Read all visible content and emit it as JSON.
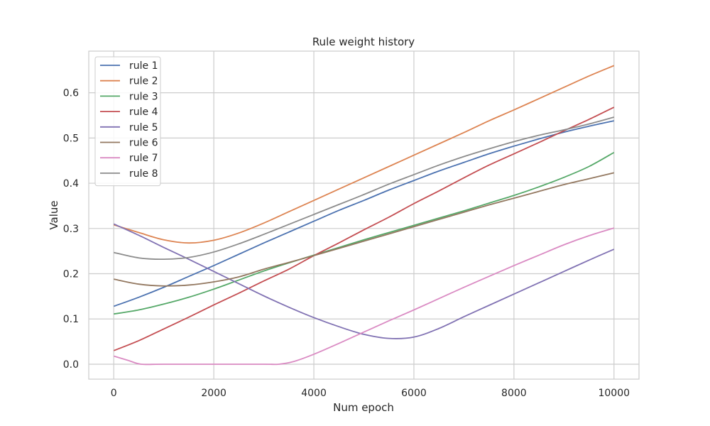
{
  "chart_data": {
    "type": "line",
    "title": "Rule weight history",
    "xlabel": "Num epoch",
    "ylabel": "Value",
    "xlim": [
      -500,
      10500
    ],
    "ylim": [
      -0.033,
      0.692
    ],
    "xticks": [
      0,
      2000,
      4000,
      6000,
      8000,
      10000
    ],
    "yticks": [
      0.0,
      0.1,
      0.2,
      0.3,
      0.4,
      0.5,
      0.6
    ],
    "xtick_labels": [
      "0",
      "2000",
      "4000",
      "6000",
      "8000",
      "10000"
    ],
    "ytick_labels": [
      "0.0",
      "0.1",
      "0.2",
      "0.3",
      "0.4",
      "0.5",
      "0.6"
    ],
    "grid": true,
    "legend_position": "top-left",
    "series": [
      {
        "name": "rule 1",
        "color": "#4c72b0",
        "x": [
          0,
          500,
          1000,
          1500,
          2000,
          2500,
          3000,
          3500,
          4000,
          4500,
          5000,
          5500,
          6000,
          6500,
          7000,
          7500,
          8000,
          8500,
          9000,
          9500,
          10000
        ],
        "y": [
          0.128,
          0.148,
          0.17,
          0.194,
          0.218,
          0.243,
          0.268,
          0.292,
          0.316,
          0.34,
          0.362,
          0.385,
          0.406,
          0.427,
          0.446,
          0.465,
          0.482,
          0.498,
          0.513,
          0.526,
          0.538
        ]
      },
      {
        "name": "rule 2",
        "color": "#dd8452",
        "x": [
          0,
          500,
          1000,
          1500,
          2000,
          2500,
          3000,
          3500,
          4000,
          4500,
          5000,
          5500,
          6000,
          6500,
          7000,
          7500,
          8000,
          8500,
          9000,
          9500,
          10000
        ],
        "y": [
          0.308,
          0.291,
          0.275,
          0.268,
          0.274,
          0.29,
          0.312,
          0.337,
          0.362,
          0.387,
          0.412,
          0.437,
          0.462,
          0.487,
          0.512,
          0.538,
          0.562,
          0.587,
          0.612,
          0.637,
          0.66
        ]
      },
      {
        "name": "rule 3",
        "color": "#55a868",
        "x": [
          0,
          500,
          1000,
          1500,
          2000,
          2500,
          3000,
          3500,
          4000,
          4500,
          5000,
          5500,
          6000,
          6500,
          7000,
          7500,
          8000,
          8500,
          9000,
          9500,
          10000
        ],
        "y": [
          0.111,
          0.12,
          0.133,
          0.148,
          0.166,
          0.186,
          0.206,
          0.224,
          0.241,
          0.258,
          0.275,
          0.291,
          0.307,
          0.323,
          0.339,
          0.356,
          0.373,
          0.392,
          0.413,
          0.437,
          0.468
        ]
      },
      {
        "name": "rule 4",
        "color": "#c44e52",
        "x": [
          0,
          500,
          1000,
          1500,
          2000,
          2500,
          3000,
          3500,
          4000,
          4500,
          5000,
          5500,
          6000,
          6500,
          7000,
          7500,
          8000,
          8500,
          9000,
          9500,
          10000
        ],
        "y": [
          0.03,
          0.052,
          0.078,
          0.104,
          0.131,
          0.157,
          0.184,
          0.21,
          0.24,
          0.268,
          0.297,
          0.325,
          0.355,
          0.383,
          0.412,
          0.44,
          0.465,
          0.49,
          0.516,
          0.541,
          0.568
        ]
      },
      {
        "name": "rule 5",
        "color": "#8172b3",
        "x": [
          0,
          500,
          1000,
          1500,
          2000,
          2500,
          3000,
          3500,
          4000,
          4500,
          5000,
          5500,
          6000,
          6500,
          7000,
          7500,
          8000,
          8500,
          9000,
          9500,
          10000
        ],
        "y": [
          0.31,
          0.285,
          0.258,
          0.232,
          0.205,
          0.178,
          0.151,
          0.126,
          0.103,
          0.083,
          0.066,
          0.057,
          0.06,
          0.079,
          0.105,
          0.13,
          0.155,
          0.18,
          0.205,
          0.23,
          0.254
        ]
      },
      {
        "name": "rule 6",
        "color": "#937860",
        "x": [
          0,
          500,
          1000,
          1500,
          2000,
          2500,
          3000,
          3500,
          4000,
          4500,
          5000,
          5500,
          6000,
          6500,
          7000,
          7500,
          8000,
          8500,
          9000,
          9500,
          10000
        ],
        "y": [
          0.188,
          0.177,
          0.173,
          0.175,
          0.182,
          0.193,
          0.21,
          0.225,
          0.24,
          0.256,
          0.272,
          0.288,
          0.304,
          0.32,
          0.336,
          0.352,
          0.367,
          0.382,
          0.397,
          0.41,
          0.423
        ]
      },
      {
        "name": "rule 7",
        "color": "#da8bc3",
        "x": [
          0,
          300,
          550,
          1000,
          2000,
          3000,
          3300,
          3600,
          4000,
          4500,
          5000,
          5500,
          6000,
          6500,
          7000,
          7500,
          8000,
          8500,
          9000,
          9500,
          10000
        ],
        "y": [
          0.018,
          0.008,
          0.0,
          0.0,
          0.0,
          0.0,
          0.0,
          0.006,
          0.022,
          0.046,
          0.071,
          0.096,
          0.12,
          0.145,
          0.17,
          0.194,
          0.218,
          0.241,
          0.264,
          0.284,
          0.301
        ]
      },
      {
        "name": "rule 8",
        "color": "#8c8c8c",
        "x": [
          0,
          500,
          1000,
          1500,
          2000,
          2500,
          3000,
          3500,
          4000,
          4500,
          5000,
          5500,
          6000,
          6500,
          7000,
          7500,
          8000,
          8500,
          9000,
          9500,
          10000
        ],
        "y": [
          0.247,
          0.235,
          0.232,
          0.236,
          0.248,
          0.266,
          0.287,
          0.309,
          0.331,
          0.353,
          0.375,
          0.398,
          0.419,
          0.44,
          0.459,
          0.476,
          0.492,
          0.506,
          0.518,
          0.531,
          0.546
        ]
      }
    ]
  }
}
